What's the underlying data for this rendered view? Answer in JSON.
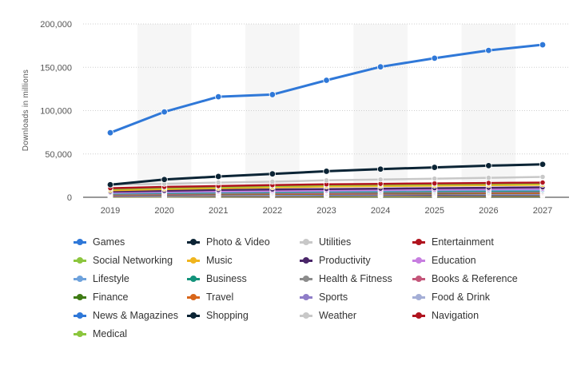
{
  "chart_data": {
    "type": "line",
    "title": "",
    "xlabel": "",
    "ylabel": "Downloads in millions",
    "x": [
      "2019",
      "2020",
      "2021",
      "2022",
      "2023",
      "2024",
      "2025",
      "2026",
      "2027"
    ],
    "ylim": [
      0,
      200000
    ],
    "yticks": [
      0,
      50000,
      100000,
      150000,
      200000
    ],
    "ytick_labels": [
      "0",
      "50,000",
      "100,000",
      "150,000",
      "200,000"
    ],
    "grid": "horizontal-dotted",
    "legend_position": "bottom",
    "series": [
      {
        "name": "Games",
        "color": "#2f78d8",
        "values": [
          74500,
          98500,
          116000,
          118500,
          135000,
          150500,
          160500,
          169500,
          176000
        ]
      },
      {
        "name": "Photo & Video",
        "color": "#0b2435",
        "values": [
          14500,
          20500,
          24000,
          27000,
          30000,
          32500,
          34500,
          36500,
          38000
        ]
      },
      {
        "name": "Utilities",
        "color": "#c8c8c8",
        "values": [
          14500,
          15500,
          17000,
          18000,
          19500,
          20500,
          21500,
          22500,
          23500
        ]
      },
      {
        "name": "Entertainment",
        "color": "#b0141f",
        "values": [
          10500,
          12000,
          13000,
          14000,
          15000,
          15500,
          16000,
          16500,
          17000
        ]
      },
      {
        "name": "Social Networking",
        "color": "#8cc63e",
        "values": [
          9500,
          11000,
          12000,
          13000,
          14000,
          14500,
          15000,
          15500,
          16000
        ]
      },
      {
        "name": "Music",
        "color": "#f0b51e",
        "values": [
          8000,
          9500,
          10500,
          11500,
          12500,
          13000,
          13500,
          14000,
          14500
        ]
      },
      {
        "name": "Productivity",
        "color": "#4a2669",
        "values": [
          6500,
          7500,
          8500,
          9000,
          9500,
          10000,
          10500,
          11000,
          11500
        ]
      },
      {
        "name": "Education",
        "color": "#c77ee0",
        "values": [
          5500,
          6500,
          7000,
          7500,
          8000,
          8500,
          9000,
          9500,
          10000
        ]
      },
      {
        "name": "Lifestyle",
        "color": "#6ea2dc",
        "values": [
          5000,
          5800,
          6300,
          6800,
          7200,
          7600,
          8000,
          8300,
          8600
        ]
      },
      {
        "name": "Business",
        "color": "#13937b",
        "values": [
          4500,
          5200,
          5700,
          6100,
          6500,
          6900,
          7200,
          7500,
          7800
        ]
      },
      {
        "name": "Health & Fitness",
        "color": "#8c8c8c",
        "values": [
          4000,
          4600,
          5000,
          5400,
          5800,
          6100,
          6400,
          6700,
          7000
        ]
      },
      {
        "name": "Books & Reference",
        "color": "#c4567a",
        "values": [
          3500,
          4000,
          4400,
          4700,
          5000,
          5300,
          5600,
          5900,
          6100
        ]
      },
      {
        "name": "Finance",
        "color": "#3e7b14",
        "values": [
          3200,
          3700,
          4000,
          4300,
          4600,
          4900,
          5100,
          5400,
          5600
        ]
      },
      {
        "name": "Travel",
        "color": "#d8661a",
        "values": [
          2800,
          3200,
          3500,
          3800,
          4100,
          4300,
          4500,
          4700,
          4900
        ]
      },
      {
        "name": "Sports",
        "color": "#8f7dc8",
        "values": [
          2500,
          2900,
          3200,
          3500,
          3700,
          3900,
          4100,
          4300,
          4500
        ]
      },
      {
        "name": "Food & Drink",
        "color": "#a4aed6",
        "values": [
          2300,
          2600,
          2900,
          3100,
          3300,
          3500,
          3700,
          3900,
          4100
        ]
      },
      {
        "name": "News & Magazines",
        "color": "#2f78d8",
        "values": [
          2000,
          2300,
          2600,
          2800,
          3000,
          3200,
          3400,
          3600,
          3700
        ]
      },
      {
        "name": "Shopping",
        "color": "#0b2435",
        "values": [
          1800,
          2100,
          2300,
          2500,
          2700,
          2900,
          3000,
          3200,
          3300
        ]
      },
      {
        "name": "Weather",
        "color": "#c8c8c8",
        "values": [
          1500,
          1700,
          1900,
          2100,
          2300,
          2400,
          2600,
          2700,
          2800
        ]
      },
      {
        "name": "Navigation",
        "color": "#b0141f",
        "values": [
          1200,
          1400,
          1600,
          1700,
          1900,
          2000,
          2100,
          2200,
          2300
        ]
      },
      {
        "name": "Medical",
        "color": "#8cc63e",
        "values": [
          800,
          950,
          1050,
          1150,
          1250,
          1350,
          1450,
          1550,
          1650
        ]
      }
    ]
  }
}
